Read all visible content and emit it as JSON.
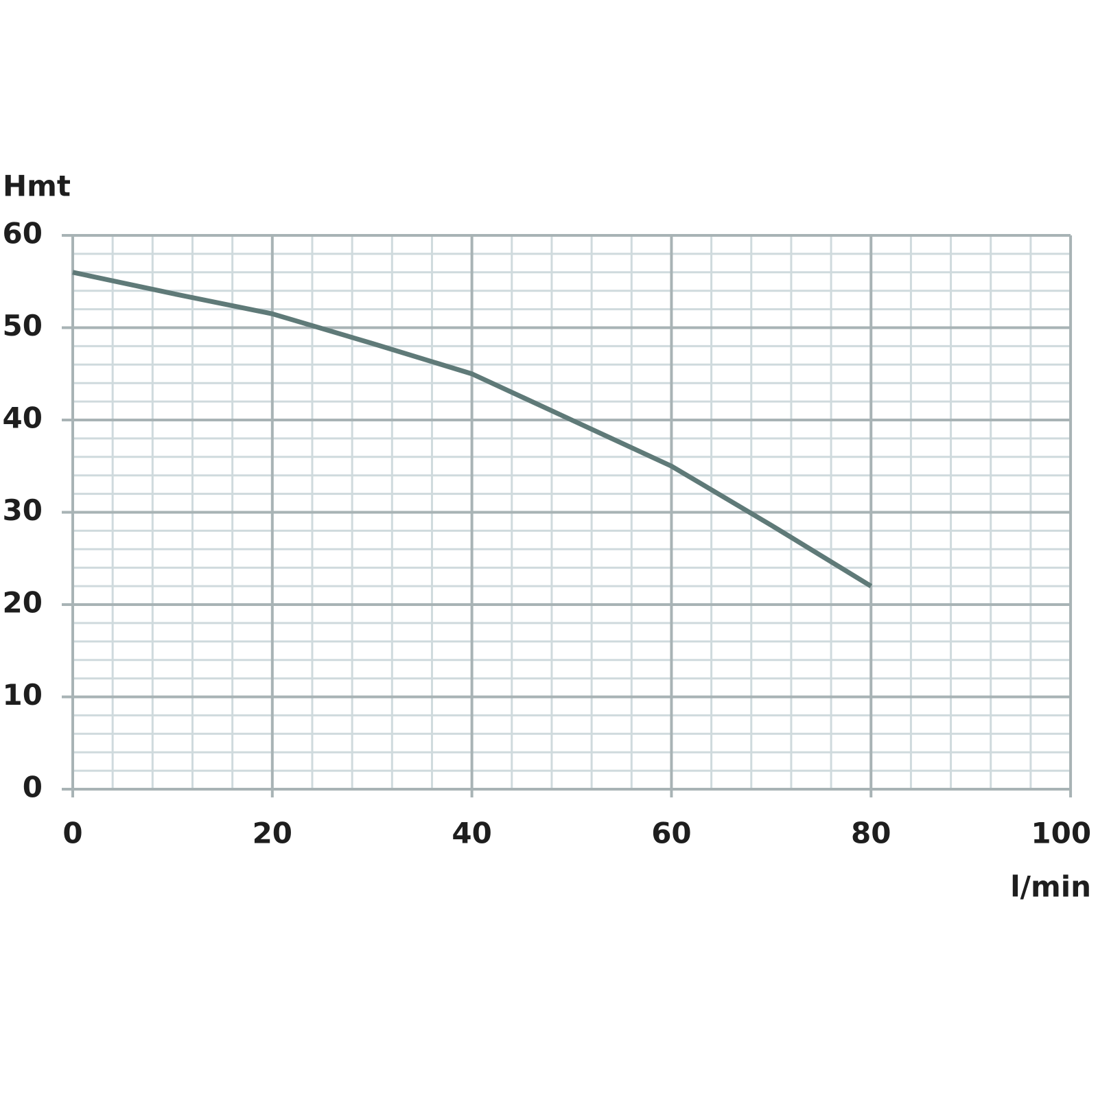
{
  "chart_data": {
    "type": "line",
    "x_label": "l/min",
    "y_label": "Hmt",
    "x": [
      0,
      10,
      20,
      30,
      40,
      50,
      60,
      70,
      80
    ],
    "series": [
      {
        "name": "Hmt",
        "color": "#5f7a78",
        "values": [
          56,
          53.7,
          51.5,
          48.3,
          45,
          40,
          35,
          28.6,
          22
        ]
      }
    ],
    "xlim": [
      0,
      100
    ],
    "xticks": [
      0,
      20,
      40,
      60,
      80,
      100
    ],
    "ylim": [
      0,
      60
    ],
    "yticks": [
      0,
      10,
      20,
      30,
      40,
      50,
      60
    ],
    "minor_xticks": [
      4,
      8,
      12,
      16,
      24,
      28,
      32,
      36,
      44,
      48,
      52,
      56,
      64,
      68,
      72,
      76,
      84,
      88,
      92,
      96
    ],
    "minor_yticks": [
      2,
      4,
      6,
      8,
      12,
      14,
      16,
      18,
      22,
      24,
      26,
      28,
      32,
      34,
      36,
      38,
      42,
      44,
      46,
      48,
      52,
      54,
      56,
      58
    ],
    "grid": true
  }
}
